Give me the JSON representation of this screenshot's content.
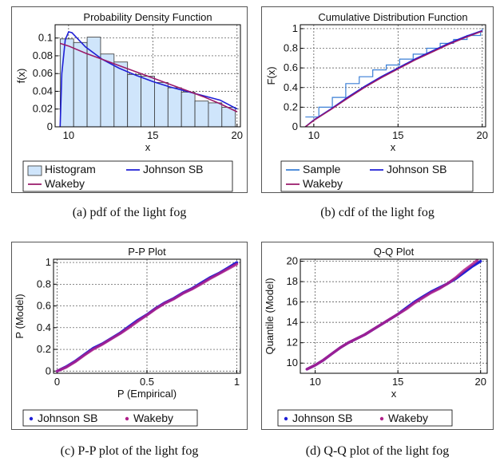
{
  "chart_data": [
    {
      "id": "pdf",
      "type": "bar",
      "title": "Probability Density Function",
      "xlabel": "x",
      "ylabel": "f(x)",
      "xlim": [
        9.2,
        20.2
      ],
      "ylim": [
        0,
        0.115
      ],
      "xticks": [
        10,
        15,
        20
      ],
      "yticks": [
        0,
        0.02,
        0.04,
        0.06,
        0.08,
        0.1
      ],
      "ytick_labels": [
        "0",
        "0.02",
        "0.04",
        "0.06",
        "0.08",
        "0.1"
      ],
      "grid": true,
      "histogram": {
        "name": "Histogram",
        "bin_edges": [
          9.5,
          10.3,
          11.1,
          11.9,
          12.7,
          13.5,
          14.3,
          15.1,
          15.9,
          16.7,
          17.5,
          18.3,
          19.1,
          19.9
        ],
        "values": [
          0.099,
          0.095,
          0.101,
          0.082,
          0.073,
          0.059,
          0.057,
          0.05,
          0.044,
          0.039,
          0.029,
          0.027,
          0.022
        ]
      },
      "series": [
        {
          "name": "Johnson SB",
          "color": "#1f1fd6",
          "x": [
            9.5,
            9.6,
            9.8,
            10.0,
            10.2,
            10.5,
            11.0,
            12.0,
            13.0,
            14.0,
            15.0,
            16.0,
            17.0,
            18.0,
            19.0,
            20.0
          ],
          "y": [
            0.0,
            0.06,
            0.098,
            0.107,
            0.106,
            0.1,
            0.09,
            0.076,
            0.066,
            0.058,
            0.051,
            0.045,
            0.04,
            0.035,
            0.03,
            0.02
          ]
        },
        {
          "name": "Wakeby",
          "color": "#9a1a6a",
          "x": [
            9.5,
            10.0,
            11.0,
            12.0,
            13.0,
            14.0,
            15.0,
            16.0,
            17.0,
            18.0,
            19.0,
            20.0
          ],
          "y": [
            0.094,
            0.091,
            0.083,
            0.076,
            0.069,
            0.062,
            0.055,
            0.048,
            0.041,
            0.034,
            0.026,
            0.017
          ]
        }
      ],
      "legend": [
        "Histogram",
        "Johnson SB",
        "Wakeby"
      ],
      "legend_placement": "bottom",
      "caption": "(a)  pdf of the light fog"
    },
    {
      "id": "cdf",
      "type": "line",
      "title": "Cumulative Distribution Function",
      "xlabel": "x",
      "ylabel": "F(x)",
      "xlim": [
        9.2,
        20.2
      ],
      "ylim": [
        0,
        1.04
      ],
      "xticks": [
        10,
        15,
        20
      ],
      "yticks": [
        0,
        0.2,
        0.4,
        0.6,
        0.8,
        1
      ],
      "ytick_labels": [
        "0",
        "0.2",
        "0.4",
        "0.6",
        "0.8",
        "1"
      ],
      "grid": true,
      "sample_steps": {
        "name": "Sample",
        "color": "#3a7fd6",
        "edges": [
          9.5,
          10.3,
          11.1,
          11.9,
          12.7,
          13.5,
          14.3,
          15.1,
          15.9,
          16.7,
          17.5,
          18.3,
          19.1,
          19.9,
          20.0
        ],
        "levels": [
          0.1,
          0.2,
          0.3,
          0.44,
          0.51,
          0.58,
          0.63,
          0.69,
          0.74,
          0.8,
          0.85,
          0.89,
          0.93,
          0.97,
          1.0
        ]
      },
      "series": [
        {
          "name": "Johnson SB",
          "color": "#1f1fd6",
          "x": [
            9.5,
            10.0,
            11.0,
            12.0,
            13.0,
            14.0,
            15.0,
            16.0,
            17.0,
            18.0,
            19.0,
            20.0
          ],
          "y": [
            0.0,
            0.07,
            0.18,
            0.3,
            0.41,
            0.51,
            0.6,
            0.69,
            0.77,
            0.85,
            0.92,
            0.98
          ]
        },
        {
          "name": "Wakeby",
          "color": "#9a1a6a",
          "x": [
            9.5,
            10.0,
            11.0,
            12.0,
            13.0,
            14.0,
            15.0,
            16.0,
            17.0,
            18.0,
            19.0,
            20.0
          ],
          "y": [
            0.0,
            0.065,
            0.175,
            0.29,
            0.4,
            0.5,
            0.59,
            0.68,
            0.76,
            0.84,
            0.91,
            0.975
          ]
        }
      ],
      "legend": [
        "Sample",
        "Johnson SB",
        "Wakeby"
      ],
      "legend_placement": "bottom",
      "caption": "(b)  cdf of the light fog"
    },
    {
      "id": "pp",
      "type": "scatter",
      "title": "P-P Plot",
      "xlabel": "P (Empirical)",
      "ylabel": "P (Model)",
      "xlim": [
        -0.02,
        1.02
      ],
      "ylim": [
        -0.02,
        1.03
      ],
      "xticks": [
        0,
        0.5,
        1
      ],
      "xtick_labels": [
        "0",
        "0.5",
        "1"
      ],
      "yticks": [
        0,
        0.2,
        0.4,
        0.6,
        0.8,
        1
      ],
      "ytick_labels": [
        "0",
        "0.2",
        "0.4",
        "0.6",
        "0.8",
        "1"
      ],
      "grid": true,
      "series": [
        {
          "name": "Johnson SB",
          "color": "#1f1fd6",
          "x": [
            0.0,
            0.05,
            0.1,
            0.15,
            0.2,
            0.25,
            0.3,
            0.35,
            0.4,
            0.45,
            0.5,
            0.55,
            0.6,
            0.65,
            0.7,
            0.75,
            0.8,
            0.85,
            0.9,
            0.95,
            1.0
          ],
          "y": [
            0.0,
            0.04,
            0.09,
            0.15,
            0.21,
            0.25,
            0.3,
            0.35,
            0.41,
            0.47,
            0.52,
            0.58,
            0.63,
            0.67,
            0.72,
            0.76,
            0.81,
            0.86,
            0.9,
            0.95,
            1.0
          ]
        },
        {
          "name": "Wakeby",
          "color": "#b0208a",
          "x": [
            0.0,
            0.05,
            0.1,
            0.15,
            0.2,
            0.25,
            0.3,
            0.35,
            0.4,
            0.45,
            0.5,
            0.55,
            0.6,
            0.65,
            0.7,
            0.75,
            0.8,
            0.85,
            0.9,
            0.95,
            1.0
          ],
          "y": [
            0.0,
            0.035,
            0.085,
            0.145,
            0.2,
            0.245,
            0.295,
            0.345,
            0.4,
            0.46,
            0.515,
            0.575,
            0.625,
            0.665,
            0.715,
            0.755,
            0.8,
            0.85,
            0.895,
            0.94,
            0.985
          ]
        }
      ],
      "legend": [
        "Johnson SB",
        "Wakeby"
      ],
      "legend_placement": "bottom",
      "caption": "(c)  P-P plot of the light fog"
    },
    {
      "id": "qq",
      "type": "scatter",
      "title": "Q-Q Plot",
      "xlabel": "x",
      "ylabel": "Quantile (Model)",
      "xlim": [
        9.1,
        20.4
      ],
      "ylim": [
        9.0,
        20.2
      ],
      "xticks": [
        10,
        15,
        20
      ],
      "yticks": [
        10,
        12,
        14,
        16,
        18,
        20
      ],
      "ytick_labels": [
        "10",
        "12",
        "14",
        "16",
        "18",
        "20"
      ],
      "grid": true,
      "series": [
        {
          "name": "Johnson SB",
          "color": "#1f1fd6",
          "x": [
            9.5,
            10.0,
            10.5,
            11.0,
            11.5,
            12.0,
            12.5,
            13.0,
            13.5,
            14.0,
            14.5,
            15.0,
            15.5,
            16.0,
            16.5,
            17.0,
            17.5,
            18.0,
            18.5,
            19.0,
            19.5,
            20.0
          ],
          "y": [
            9.4,
            9.8,
            10.3,
            10.9,
            11.5,
            12.0,
            12.4,
            12.8,
            13.3,
            13.8,
            14.3,
            14.8,
            15.4,
            16.0,
            16.5,
            17.0,
            17.4,
            17.8,
            18.3,
            18.9,
            19.5,
            20.0
          ]
        },
        {
          "name": "Wakeby",
          "color": "#b0208a",
          "x": [
            9.5,
            10.0,
            10.5,
            11.0,
            11.5,
            12.0,
            12.5,
            13.0,
            13.5,
            14.0,
            14.5,
            15.0,
            15.5,
            16.0,
            16.5,
            17.0,
            17.5,
            18.0,
            18.5,
            19.0,
            19.5,
            19.8
          ],
          "y": [
            9.4,
            9.8,
            10.3,
            10.9,
            11.5,
            12.0,
            12.4,
            12.8,
            13.3,
            13.8,
            14.3,
            14.8,
            15.3,
            15.9,
            16.4,
            16.9,
            17.3,
            17.8,
            18.4,
            19.1,
            19.7,
            20.1
          ]
        }
      ],
      "legend": [
        "Johnson SB",
        "Wakeby"
      ],
      "legend_placement": "bottom",
      "caption": "(d)  Q-Q plot of the light fog"
    }
  ]
}
